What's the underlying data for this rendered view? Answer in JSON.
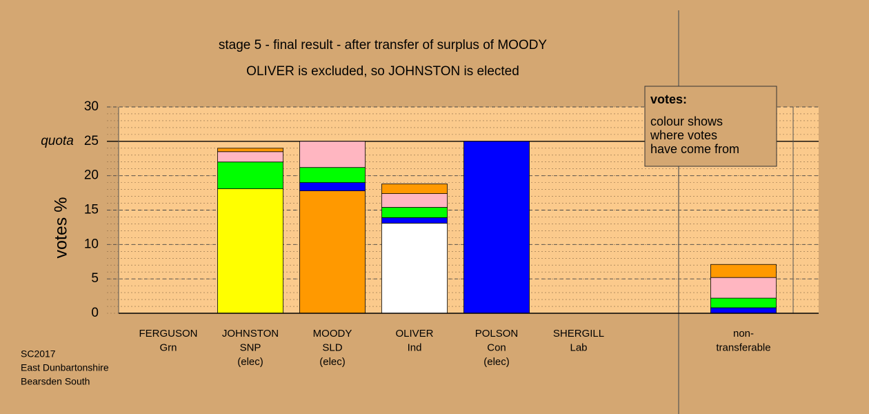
{
  "chart_data": {
    "type": "bar",
    "stacked": true,
    "title": "stage 5 - final result - after transfer of surplus of MOODY",
    "subtitle": "OLIVER is excluded, so JOHNSTON is elected",
    "y_label": "votes %",
    "quota_label": "quota",
    "quota": 25,
    "ylim": [
      0,
      30
    ],
    "yticks": [
      0,
      5,
      10,
      15,
      20,
      25,
      30
    ],
    "grid": true,
    "minor_grid": 1,
    "bars": [
      {
        "label": [
          "FERGUSON",
          "Grn"
        ],
        "segments": []
      },
      {
        "label": [
          "JOHNSTON",
          "SNP",
          "(elec)"
        ],
        "segments": [
          {
            "color": "#ffff00",
            "value": 18.1
          },
          {
            "color": "#00ff00",
            "value": 3.9
          },
          {
            "color": "#ffb6c1",
            "value": 1.5
          },
          {
            "color": "#ff9900",
            "value": 0.5
          }
        ]
      },
      {
        "label": [
          "MOODY",
          "SLD",
          "(elec)"
        ],
        "segments": [
          {
            "color": "#ff9900",
            "value": 17.8
          },
          {
            "color": "#0000ff",
            "value": 1.2
          },
          {
            "color": "#00ff00",
            "value": 2.2
          },
          {
            "color": "#ffb6c1",
            "value": 3.8
          }
        ]
      },
      {
        "label": [
          "OLIVER",
          "Ind"
        ],
        "segments": [
          {
            "color": "#ffffff",
            "value": 13.1
          },
          {
            "color": "#0000ff",
            "value": 0.8
          },
          {
            "color": "#00ff00",
            "value": 1.5
          },
          {
            "color": "#ffb6c1",
            "value": 2.0
          },
          {
            "color": "#ff9900",
            "value": 1.4
          }
        ]
      },
      {
        "label": [
          "POLSON",
          "Con",
          "(elec)"
        ],
        "segments": [
          {
            "color": "#0000ff",
            "value": 25
          }
        ]
      },
      {
        "label": [
          "SHERGILL",
          "Lab"
        ],
        "segments": []
      },
      {
        "label": [
          "non-",
          "transferable"
        ],
        "segments": [
          {
            "color": "#0000ff",
            "value": 0.8
          },
          {
            "color": "#00ff00",
            "value": 1.4
          },
          {
            "color": "#ffb6c1",
            "value": 3.0
          },
          {
            "color": "#ff9900",
            "value": 1.9
          }
        ]
      }
    ],
    "legend": {
      "title": "votes:",
      "lines": [
        "colour shows",
        "where votes",
        "have come from"
      ]
    },
    "footer": [
      "SC2017",
      "East Dunbartonshire",
      "Bearsden South"
    ]
  }
}
